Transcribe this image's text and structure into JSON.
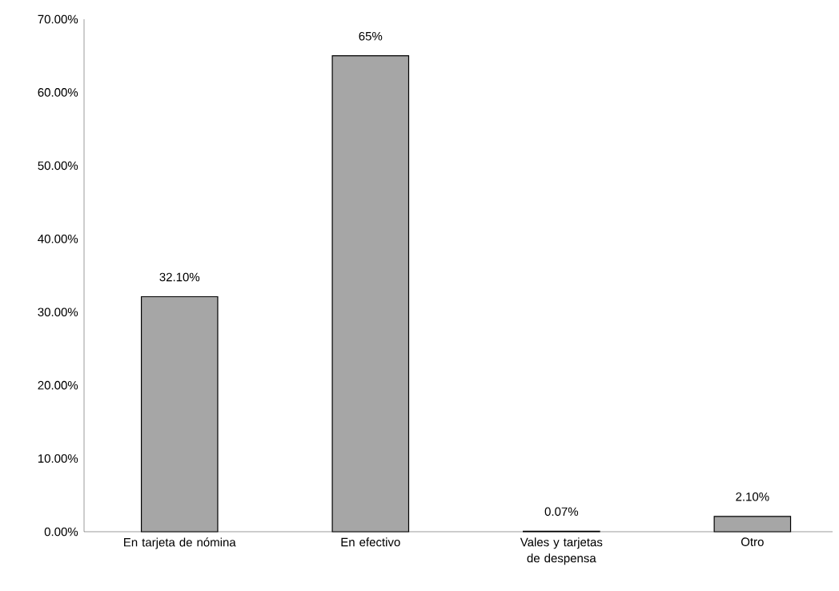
{
  "chart_data": {
    "type": "bar",
    "categories": [
      "En tarjeta de nómina",
      "En efectivo",
      "Vales y tarjetas de despensa",
      "Otro"
    ],
    "values": [
      32.1,
      65,
      0.07,
      2.1
    ],
    "value_labels": [
      "32.10%",
      "65%",
      "0.07%",
      "2.10%"
    ],
    "color": "#a6a6a6",
    "ylim": [
      0,
      70
    ],
    "yticks": [
      {
        "value": 0,
        "label": "0.00%"
      },
      {
        "value": 10,
        "label": "10.00%"
      },
      {
        "value": 20,
        "label": "20.00%"
      },
      {
        "value": 30,
        "label": "30.00%"
      },
      {
        "value": 40,
        "label": "40.00%"
      },
      {
        "value": 50,
        "label": "50.00%"
      },
      {
        "value": 60,
        "label": "60.00%"
      },
      {
        "value": 70,
        "label": "70.00%"
      }
    ],
    "grid": false
  }
}
